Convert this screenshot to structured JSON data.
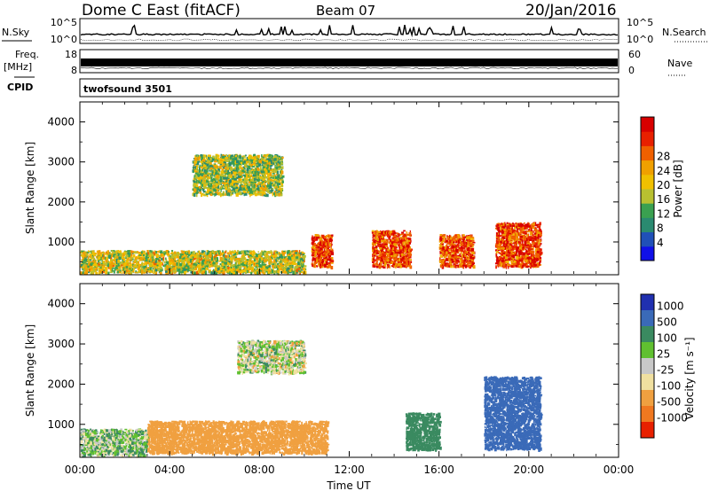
{
  "header": {
    "title": "Dome C East (fitACF)",
    "beam": "Beam 07",
    "date": "20/Jan/2016"
  },
  "strips": {
    "nsky_label": "N.Sky",
    "nsky_ticks": [
      "10^5",
      "10^0"
    ],
    "nsearch_label": "N.Search",
    "nsearch_ticks": [
      "10^5",
      "10^0"
    ],
    "freq_label_1": "Freq.",
    "freq_label_2": "[MHz]",
    "freq_ticks": [
      "18",
      "8"
    ],
    "nave_label": "Nave",
    "nave_ticks": [
      "60",
      "0"
    ],
    "cpid_label": "CPID",
    "cpid_value": "twofsound 3501"
  },
  "x_ticks": [
    "00:00",
    "04:00",
    "08:00",
    "12:00",
    "16:00",
    "20:00",
    "00:00"
  ],
  "x_label": "Time UT",
  "colors": {
    "frame": "#000000",
    "background": "#ffffff"
  },
  "chart_data": [
    {
      "type": "heatmap",
      "panel": "power",
      "ylabel": "Slant Range [km]",
      "y_ticks": [
        1000,
        2000,
        3000,
        4000
      ],
      "ylim": [
        180,
        4500
      ],
      "xlim_hours": [
        0,
        24
      ],
      "colorbar": {
        "label": "Power [dB]",
        "ticks": [
          "4",
          "8",
          "12",
          "16",
          "20",
          "24",
          "28"
        ],
        "colors": [
          "#1010e8",
          "#2050b8",
          "#2a8a70",
          "#3aa050",
          "#b8c030",
          "#f0c000",
          "#f0a000",
          "#f06000",
          "#e82000",
          "#d80000"
        ]
      },
      "features": [
        {
          "time_hours": [
            0,
            10
          ],
          "range_km": [
            250,
            800
          ],
          "value": 16
        },
        {
          "time_hours": [
            10.3,
            11.2
          ],
          "range_km": [
            400,
            1200
          ],
          "value": 26
        },
        {
          "time_hours": [
            13,
            14.7
          ],
          "range_km": [
            400,
            1300
          ],
          "value": 26
        },
        {
          "time_hours": [
            16,
            17.5
          ],
          "range_km": [
            400,
            1200
          ],
          "value": 26
        },
        {
          "time_hours": [
            18.5,
            20.5
          ],
          "range_km": [
            400,
            1500
          ],
          "value": 26
        },
        {
          "time_hours": [
            5,
            9
          ],
          "range_km": [
            2200,
            3200
          ],
          "value": 14
        }
      ]
    },
    {
      "type": "heatmap",
      "panel": "velocity",
      "ylabel": "Slant Range [km]",
      "y_ticks": [
        1000,
        2000,
        3000,
        4000
      ],
      "ylim": [
        180,
        4500
      ],
      "xlim_hours": [
        0,
        24
      ],
      "colorbar": {
        "label": "Velocity [m s⁻¹]",
        "ticks": [
          "1000",
          "500",
          "100",
          "25",
          "-25",
          "-100",
          "-500",
          "-1000"
        ],
        "colors": [
          "#2030b0",
          "#3a6ab8",
          "#3a8a60",
          "#60c030",
          "#c8c8c8",
          "#f0e0a0",
          "#f0a040",
          "#f07820",
          "#e82000"
        ]
      },
      "features": [
        {
          "time_hours": [
            0,
            3
          ],
          "range_km": [
            250,
            900
          ],
          "value": 50
        },
        {
          "time_hours": [
            3,
            11
          ],
          "range_km": [
            300,
            1100
          ],
          "value": -300
        },
        {
          "time_hours": [
            7,
            10
          ],
          "range_km": [
            2300,
            3100
          ],
          "value": 0
        },
        {
          "time_hours": [
            14.5,
            16
          ],
          "range_km": [
            400,
            1300
          ],
          "value": 300
        },
        {
          "time_hours": [
            18,
            20.5
          ],
          "range_km": [
            400,
            2200
          ],
          "value": 700
        }
      ]
    }
  ]
}
